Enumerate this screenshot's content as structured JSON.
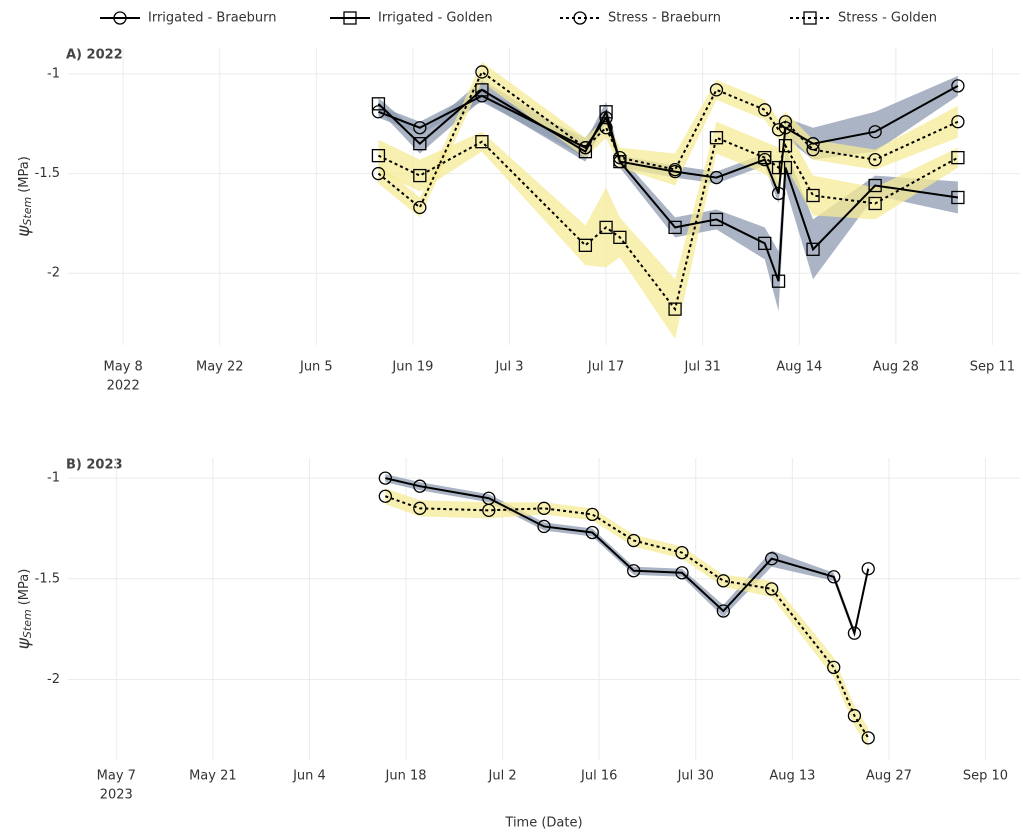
{
  "legend_chart": 0,
  "chart_data": [
    {
      "type": "line",
      "title": "A) 2022",
      "ylabel": {
        "symbol": "ψ",
        "subscript": "Stem",
        "unit": "(MPa)"
      },
      "x": [
        "2022-06-14",
        "2022-06-20",
        "2022-06-29",
        "2022-07-14",
        "2022-07-17",
        "2022-07-19",
        "2022-07-27",
        "2022-08-02",
        "2022-08-09",
        "2022-08-11",
        "2022-08-12",
        "2022-08-16",
        "2022-08-25",
        "2022-09-06"
      ],
      "series": [
        {
          "name": "Irrigated - Braeburn",
          "color": "#000000",
          "band_color": "#8d9bb0",
          "line": "solid",
          "marker": "circle",
          "values": [
            -1.19,
            -1.27,
            -1.11,
            -1.37,
            -1.22,
            -1.44,
            -1.49,
            -1.52,
            -1.43,
            -1.6,
            -1.27,
            -1.35,
            -1.29,
            -1.06
          ],
          "errors": [
            0.03,
            0.03,
            0.03,
            0.05,
            0.03,
            0.03,
            0.03,
            0.03,
            0.03,
            0.05,
            0.05,
            0.08,
            0.1,
            0.05
          ]
        },
        {
          "name": "Irrigated - Golden",
          "color": "#000000",
          "band_color": "#8d9bb0",
          "line": "solid",
          "marker": "square",
          "values": [
            -1.15,
            -1.35,
            -1.08,
            -1.39,
            -1.19,
            -1.44,
            -1.77,
            -1.73,
            -1.85,
            -2.04,
            -1.47,
            -1.88,
            -1.56,
            -1.62
          ],
          "errors": [
            0.03,
            0.05,
            0.05,
            0.05,
            0.05,
            0.03,
            0.05,
            0.05,
            0.08,
            0.15,
            0.1,
            0.15,
            0.05,
            0.08
          ]
        },
        {
          "name": "Stress - Braeburn",
          "color": "#000000",
          "band_color": "#f6eb96",
          "line": "dotted",
          "marker": "circle",
          "values": [
            -1.5,
            -1.67,
            -0.99,
            -1.37,
            -1.27,
            -1.42,
            -1.48,
            -1.08,
            -1.18,
            -1.28,
            -1.24,
            -1.38,
            -1.43,
            -1.24
          ],
          "errors": [
            0.05,
            0.05,
            0.05,
            0.05,
            0.05,
            0.05,
            0.08,
            0.05,
            0.05,
            0.05,
            0.05,
            0.05,
            0.05,
            0.08
          ]
        },
        {
          "name": "Stress - Golden",
          "color": "#000000",
          "band_color": "#f6eb96",
          "line": "dotted",
          "marker": "square",
          "values": [
            -1.41,
            -1.51,
            -1.34,
            -1.86,
            -1.77,
            -1.82,
            -2.18,
            -1.32,
            -1.42,
            -1.47,
            -1.36,
            -1.61,
            -1.65,
            -1.42
          ],
          "errors": [
            0.08,
            0.08,
            0.05,
            0.1,
            0.2,
            0.1,
            0.15,
            0.08,
            0.08,
            0.1,
            0.1,
            0.1,
            0.08,
            0.05
          ]
        }
      ],
      "xlim": [
        "2022-04-30",
        "2022-09-15"
      ],
      "xticks": [
        {
          "value": "2022-05-08",
          "label": "May 8",
          "sublabel": "2022"
        },
        {
          "value": "2022-05-22",
          "label": "May 22"
        },
        {
          "value": "2022-06-05",
          "label": "Jun 5"
        },
        {
          "value": "2022-06-19",
          "label": "Jun 19"
        },
        {
          "value": "2022-07-03",
          "label": "Jul 3"
        },
        {
          "value": "2022-07-17",
          "label": "Jul 17"
        },
        {
          "value": "2022-07-31",
          "label": "Jul 31"
        },
        {
          "value": "2022-08-14",
          "label": "Aug 14"
        },
        {
          "value": "2022-08-28",
          "label": "Aug 28"
        },
        {
          "value": "2022-09-11",
          "label": "Sep 11"
        }
      ],
      "ylim": [
        -2.36,
        -0.87
      ],
      "yticks": [
        -1,
        -1.5,
        -2
      ],
      "grid": true
    },
    {
      "type": "line",
      "title": "B) 2023",
      "xlabel": "Time (Date)",
      "ylabel": {
        "symbol": "ψ",
        "subscript": "Stem",
        "unit": "(MPa)"
      },
      "x": [
        "2023-06-15",
        "2023-06-20",
        "2023-06-30",
        "2023-07-08",
        "2023-07-15",
        "2023-07-21",
        "2023-07-28",
        "2023-08-03",
        "2023-08-10",
        "2023-08-19",
        "2023-08-22",
        "2023-08-24"
      ],
      "series": [
        {
          "color": "#000000",
          "band_color": "#8d9bb0",
          "line": "solid",
          "marker": "circle",
          "values": [
            -1.0,
            -1.04,
            -1.1,
            -1.24,
            -1.27,
            -1.46,
            -1.47,
            -1.66,
            -1.4,
            -1.49,
            -1.77,
            -1.45
          ],
          "errors": [
            0.02,
            0.02,
            0.02,
            0.02,
            0.02,
            0.02,
            0.02,
            0.03,
            0.04,
            0.02,
            0.02,
            0.02
          ]
        },
        {
          "color": "#000000",
          "band_color": "#f6eb96",
          "line": "dotted",
          "marker": "circle",
          "values": [
            -1.09,
            -1.15,
            -1.16,
            -1.15,
            -1.18,
            -1.31,
            -1.37,
            -1.51,
            -1.55,
            -1.94,
            -2.18,
            -2.29
          ],
          "errors": [
            0.04,
            0.04,
            0.04,
            0.03,
            0.03,
            0.03,
            0.03,
            0.03,
            0.04,
            0.05,
            0.05,
            0.05
          ]
        }
      ],
      "xlim": [
        "2023-04-30",
        "2023-09-15"
      ],
      "xticks": [
        {
          "value": "2023-05-07",
          "label": "May 7",
          "sublabel": "2023"
        },
        {
          "value": "2023-05-21",
          "label": "May 21"
        },
        {
          "value": "2023-06-04",
          "label": "Jun 4"
        },
        {
          "value": "2023-06-18",
          "label": "Jun 18"
        },
        {
          "value": "2023-07-02",
          "label": "Jul 2"
        },
        {
          "value": "2023-07-16",
          "label": "Jul 16"
        },
        {
          "value": "2023-07-30",
          "label": "Jul 30"
        },
        {
          "value": "2023-08-13",
          "label": "Aug 13"
        },
        {
          "value": "2023-08-27",
          "label": "Aug 27"
        },
        {
          "value": "2023-09-10",
          "label": "Sep 10"
        }
      ],
      "ylim": [
        -2.4,
        -0.9
      ],
      "yticks": [
        -1,
        -1.5,
        -2
      ],
      "grid": true
    }
  ]
}
